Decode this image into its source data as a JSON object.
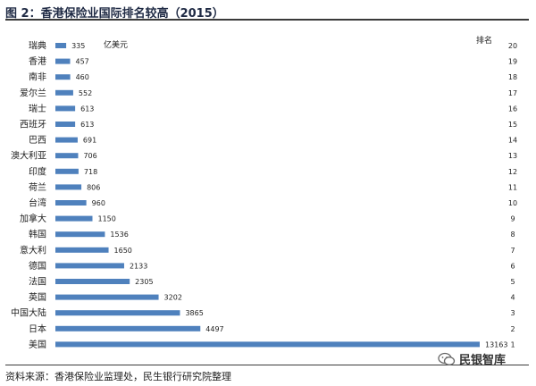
{
  "title": "图 2：香港保险业国际排名较高（2015）",
  "source": "资料来源：香港保险业监理处，民生银行研究院整理",
  "watermark": "民银智库",
  "colors": {
    "bar": "#4f81bd",
    "text": "#222222"
  },
  "chart_data": {
    "type": "bar",
    "orientation": "horizontal",
    "unit_label": "亿美元",
    "rank_label": "排名",
    "categories": [
      "瑞典",
      "香港",
      "南非",
      "爱尔兰",
      "瑞士",
      "西班牙",
      "巴西",
      "澳大利亚",
      "印度",
      "荷兰",
      "台湾",
      "加拿大",
      "韩国",
      "意大利",
      "德国",
      "法国",
      "英国",
      "中国大陆",
      "日本",
      "美国"
    ],
    "values": [
      335,
      457,
      460,
      552,
      613,
      613,
      691,
      706,
      718,
      806,
      960,
      1150,
      1536,
      1650,
      2133,
      2305,
      3202,
      3865,
      4497,
      13163
    ],
    "value_labels": [
      "335",
      "457",
      "460",
      "552",
      "613",
      "613",
      "691",
      "706",
      "718",
      "806",
      "960",
      "1150",
      "1536",
      "1650",
      "2133",
      "2305",
      "3202",
      "3865",
      "4497",
      "13163"
    ],
    "ranks": [
      20,
      19,
      18,
      17,
      16,
      15,
      14,
      13,
      12,
      11,
      10,
      9,
      8,
      7,
      6,
      5,
      4,
      3,
      2,
      1
    ],
    "xlim": [
      0,
      13163
    ],
    "grid": false,
    "legend": "none"
  }
}
